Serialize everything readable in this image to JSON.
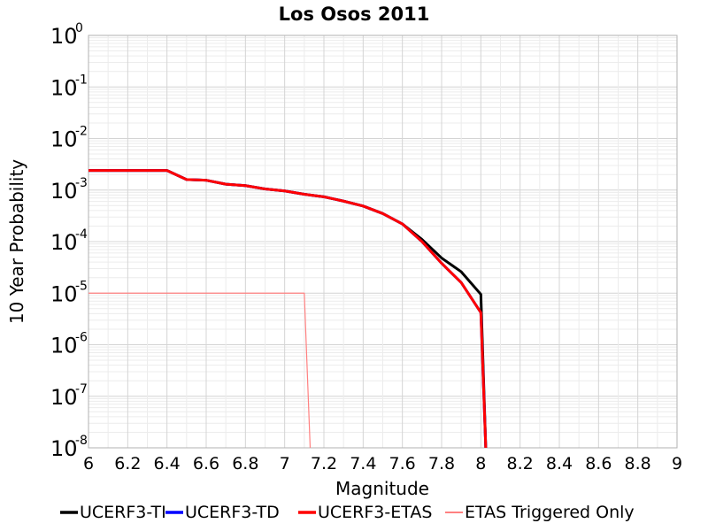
{
  "chart_data": {
    "type": "line",
    "title": "Los Osos 2011",
    "xlabel": "Magnitude",
    "ylabel": "10 Year Probability",
    "xlim": [
      6,
      9
    ],
    "ylim": [
      1e-08,
      1
    ],
    "yscale": "log",
    "grid": true,
    "legend_position": "bottom",
    "xticks": [
      "6",
      "6.2",
      "6.4",
      "6.6",
      "6.8",
      "7",
      "7.2",
      "7.4",
      "7.6",
      "7.8",
      "8",
      "8.2",
      "8.4",
      "8.6",
      "8.8",
      "9"
    ],
    "yticks": [
      {
        "base": "10",
        "exp": "0",
        "value": 1
      },
      {
        "base": "10",
        "exp": "-1",
        "value": 0.1
      },
      {
        "base": "10",
        "exp": "-2",
        "value": 0.01
      },
      {
        "base": "10",
        "exp": "-3",
        "value": 0.001
      },
      {
        "base": "10",
        "exp": "-4",
        "value": 0.0001
      },
      {
        "base": "10",
        "exp": "-5",
        "value": 1e-05
      },
      {
        "base": "10",
        "exp": "-6",
        "value": 1e-06
      },
      {
        "base": "10",
        "exp": "-7",
        "value": 1e-07
      },
      {
        "base": "10",
        "exp": "-8",
        "value": 1e-08
      }
    ],
    "series": [
      {
        "name": "UCERF3-TI",
        "color": "#000000",
        "points": [
          [
            6.0,
            0.0024
          ],
          [
            6.1,
            0.0024
          ],
          [
            6.2,
            0.0024
          ],
          [
            6.3,
            0.0024
          ],
          [
            6.4,
            0.0024
          ],
          [
            6.5,
            0.0016
          ],
          [
            6.6,
            0.00155
          ],
          [
            6.7,
            0.0013
          ],
          [
            6.8,
            0.00122
          ],
          [
            6.9,
            0.00105
          ],
          [
            7.0,
            0.00096
          ],
          [
            7.1,
            0.00083
          ],
          [
            7.2,
            0.00074
          ],
          [
            7.3,
            0.00061
          ],
          [
            7.4,
            0.00049
          ],
          [
            7.5,
            0.00035
          ],
          [
            7.6,
            0.00022
          ],
          [
            7.7,
            0.00011
          ],
          [
            7.8,
            4.8e-05
          ],
          [
            7.9,
            2.6e-05
          ],
          [
            8.0,
            9.5e-06
          ],
          [
            8.025,
            1e-08
          ]
        ]
      },
      {
        "name": "UCERF3-TD",
        "color": "#0000ff",
        "points": [
          [
            6.0,
            0.0024
          ],
          [
            6.1,
            0.0024
          ],
          [
            6.2,
            0.0024
          ],
          [
            6.3,
            0.0024
          ],
          [
            6.4,
            0.0024
          ],
          [
            6.5,
            0.0016
          ],
          [
            6.6,
            0.00155
          ],
          [
            6.7,
            0.0013
          ],
          [
            6.8,
            0.00122
          ],
          [
            6.9,
            0.00105
          ],
          [
            7.0,
            0.00096
          ],
          [
            7.1,
            0.00083
          ],
          [
            7.2,
            0.00074
          ],
          [
            7.3,
            0.00061
          ],
          [
            7.4,
            0.00049
          ],
          [
            7.5,
            0.00035
          ],
          [
            7.6,
            0.00022
          ],
          [
            7.7,
            0.0001
          ],
          [
            7.8,
            3.8e-05
          ],
          [
            7.9,
            1.6e-05
          ],
          [
            8.0,
            4.2e-06
          ],
          [
            8.025,
            1e-08
          ]
        ]
      },
      {
        "name": "UCERF3-ETAS",
        "color": "#ff0000",
        "points": [
          [
            6.0,
            0.0024
          ],
          [
            6.1,
            0.0024
          ],
          [
            6.2,
            0.0024
          ],
          [
            6.3,
            0.0024
          ],
          [
            6.4,
            0.0024
          ],
          [
            6.5,
            0.0016
          ],
          [
            6.6,
            0.00155
          ],
          [
            6.7,
            0.0013
          ],
          [
            6.8,
            0.00122
          ],
          [
            6.9,
            0.00105
          ],
          [
            7.0,
            0.00096
          ],
          [
            7.1,
            0.00083
          ],
          [
            7.2,
            0.00074
          ],
          [
            7.3,
            0.00061
          ],
          [
            7.4,
            0.00049
          ],
          [
            7.5,
            0.00035
          ],
          [
            7.6,
            0.00022
          ],
          [
            7.7,
            0.0001
          ],
          [
            7.8,
            3.8e-05
          ],
          [
            7.9,
            1.6e-05
          ],
          [
            8.0,
            4.2e-06
          ],
          [
            8.025,
            1e-08
          ]
        ]
      },
      {
        "name": "ETAS Triggered Only",
        "color": "#ff8080",
        "points": [
          [
            6.0,
            1e-05
          ],
          [
            7.1,
            1e-05
          ],
          [
            7.13,
            1e-08
          ]
        ]
      }
    ]
  }
}
